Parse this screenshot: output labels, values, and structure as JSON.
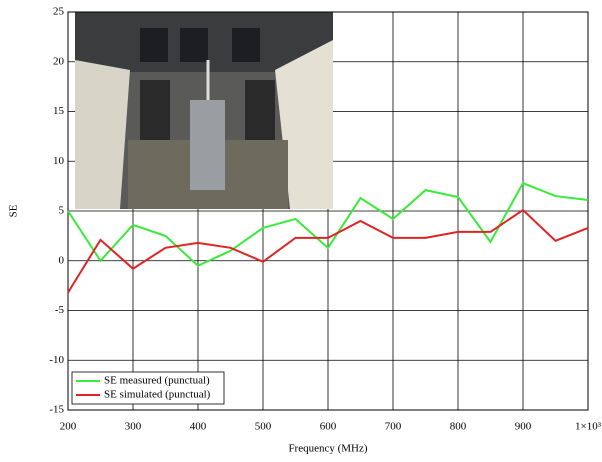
{
  "chart_data": {
    "type": "line",
    "x_label": "Frequency (MHz)",
    "y_label": "SE",
    "x": [
      200,
      250,
      300,
      350,
      400,
      450,
      500,
      550,
      600,
      650,
      700,
      750,
      800,
      850,
      900,
      950,
      1000
    ],
    "series": [
      {
        "name": "SE measured (punctual)",
        "color": "#3aea3a",
        "values": [
          5,
          0,
          3.6,
          2.5,
          -0.5,
          1,
          3.3,
          4.2,
          1.3,
          6.3,
          4.2,
          7.1,
          6.4,
          1.9,
          7.8,
          6.5,
          6.1
        ]
      },
      {
        "name": "SE simulated (punctual)",
        "color": "#e02424",
        "values": [
          -3.2,
          2.1,
          -0.8,
          1.3,
          1.8,
          1.3,
          -0.1,
          2.3,
          2.3,
          4,
          2.3,
          2.3,
          2.9,
          2.9,
          5.1,
          2,
          3.3
        ]
      }
    ],
    "xlim": [
      200,
      1000
    ],
    "xticks": [
      200,
      300,
      400,
      500,
      600,
      700,
      800,
      900,
      {
        "value": 1000,
        "label": "1×10³"
      }
    ],
    "ylim": [
      -15,
      25
    ],
    "yticks": [
      -15,
      -10,
      -5,
      0,
      5,
      10,
      15,
      20,
      25
    ],
    "grid": true,
    "legend": "lower left"
  }
}
